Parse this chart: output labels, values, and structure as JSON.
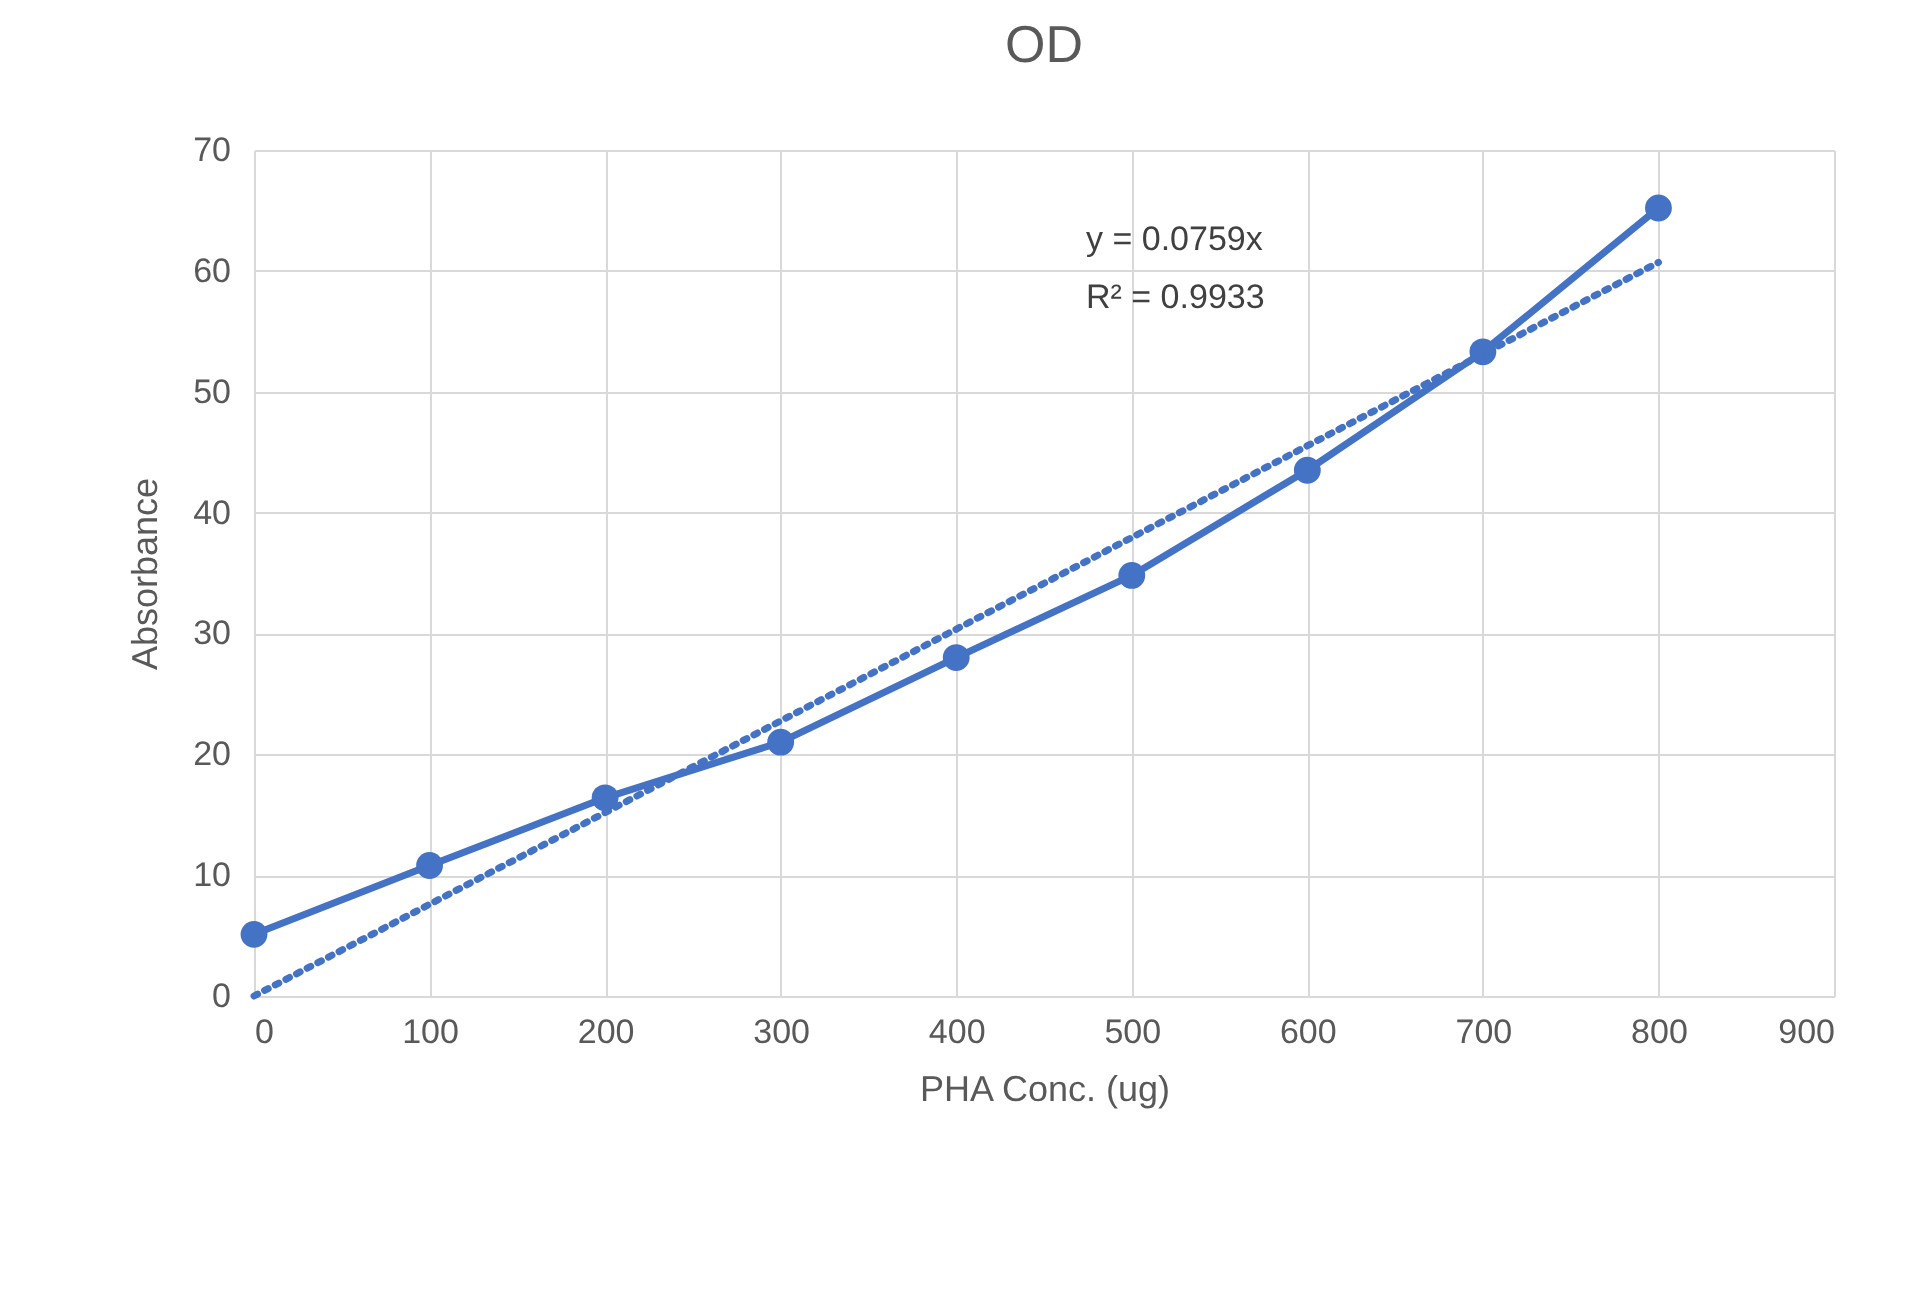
{
  "chart_data": {
    "type": "line",
    "title": "OD",
    "xlabel": "PHA Conc. (ug)",
    "ylabel": "Absorbance",
    "x": [
      0,
      100,
      200,
      300,
      400,
      500,
      600,
      700,
      800
    ],
    "series": [
      {
        "color": "#4472c4",
        "values": [
          5.1,
          10.8,
          16.4,
          21.0,
          28.0,
          34.8,
          43.5,
          53.3,
          65.2
        ],
        "marker": "circle",
        "line_style": "solid"
      },
      {
        "type": "line",
        "color": "#4472c4",
        "x": [
          0,
          800
        ],
        "values": [
          0,
          60.7
        ],
        "marker": "none",
        "line_style": "dotted"
      }
    ],
    "annotations": [
      "y = 0.0759x",
      "R² = 0.9933"
    ],
    "xlim": [
      0,
      900
    ],
    "xticks": [
      0,
      100,
      200,
      300,
      400,
      500,
      600,
      700,
      800,
      900
    ],
    "ylim": [
      0,
      70
    ],
    "yticks": [
      0,
      10,
      20,
      30,
      40,
      50,
      60,
      70
    ],
    "grid": true
  }
}
